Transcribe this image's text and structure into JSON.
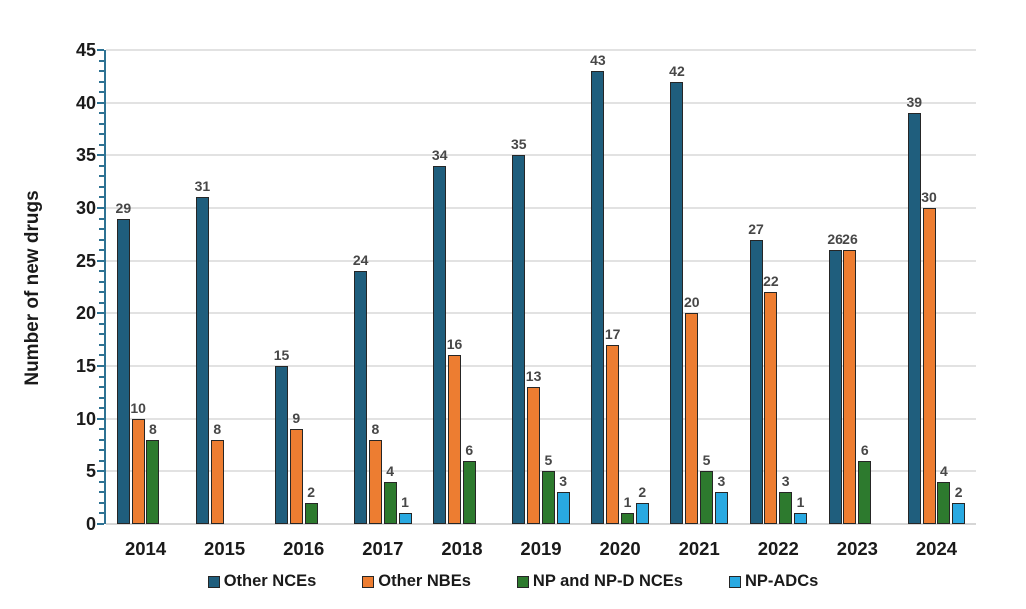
{
  "chart_data": {
    "type": "bar",
    "title": "",
    "xlabel": "",
    "ylabel": "Number of new drugs",
    "ylim": [
      0,
      45
    ],
    "ytick_step": 5,
    "minor_tick_step": 1,
    "ytick_labels": [
      "0",
      "5",
      "10",
      "15",
      "20",
      "25",
      "30",
      "35",
      "40",
      "45"
    ],
    "grid": true,
    "legend_position": "bottom",
    "categories": [
      "2014",
      "2015",
      "2016",
      "2017",
      "2018",
      "2019",
      "2020",
      "2021",
      "2022",
      "2023",
      "2024"
    ],
    "series": [
      {
        "name": "Other NCEs",
        "color": "#1f5e7d",
        "values": [
          29,
          31,
          15,
          24,
          34,
          35,
          43,
          42,
          27,
          26,
          39
        ]
      },
      {
        "name": "Other NBEs",
        "color": "#ed7d31",
        "values": [
          10,
          8,
          9,
          8,
          16,
          13,
          17,
          20,
          22,
          26,
          30
        ]
      },
      {
        "name": "NP and NP-D NCEs",
        "color": "#2d7a2e",
        "values": [
          8,
          0,
          2,
          4,
          6,
          5,
          1,
          5,
          3,
          6,
          4
        ]
      },
      {
        "name": "NP-ADCs",
        "color": "#29a9e1",
        "values": [
          0,
          0,
          0,
          1,
          0,
          3,
          2,
          3,
          1,
          0,
          2
        ]
      }
    ],
    "colors": {
      "axis": "#2e7293",
      "gridline": "#e2e2e2",
      "baseline": "#d6d6d6",
      "bar_outline": "#262626",
      "data_label": "#474747",
      "text": "#1a1a1a"
    }
  }
}
